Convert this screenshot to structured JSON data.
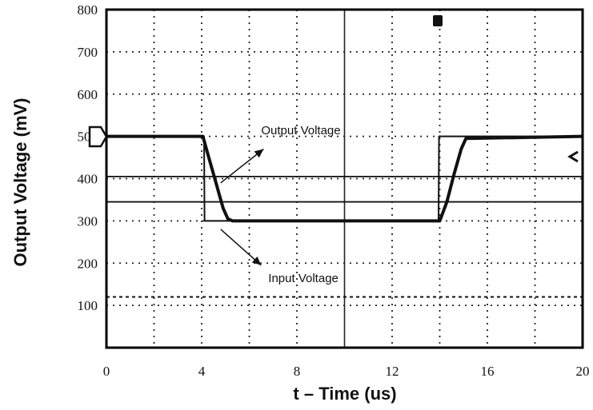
{
  "chart_data": {
    "type": "line",
    "title": "",
    "xlabel": "t – Time (us)",
    "ylabel": "Output Voltage (mV)",
    "xlim": [
      0,
      20
    ],
    "ylim": [
      0,
      800
    ],
    "x_ticks": [
      "0",
      "4",
      "8",
      "12",
      "16",
      "20"
    ],
    "y_ticks": [
      "100",
      "200",
      "300",
      "400",
      "500",
      "600",
      "700",
      "800"
    ],
    "grid": true,
    "series": [
      {
        "name": "Output Voltage",
        "color": "#111111",
        "x": [
          0,
          4.05,
          4.3,
          4.6,
          4.9,
          5.1,
          5.3,
          14.0,
          14.3,
          14.6,
          14.9,
          15.1,
          20
        ],
        "y": [
          500,
          500,
          450,
          390,
          330,
          305,
          300,
          300,
          345,
          410,
          470,
          495,
          500
        ]
      },
      {
        "name": "Input Voltage",
        "color": "#111111",
        "x": [
          0,
          4.1,
          4.12,
          13.95,
          13.97,
          20
        ],
        "y": [
          500,
          500,
          300,
          300,
          500,
          500
        ]
      }
    ],
    "reference_lines": [
      {
        "style": "solid",
        "y": 405
      },
      {
        "style": "solid",
        "y": 345
      },
      {
        "style": "dashed",
        "y": 120
      }
    ],
    "annotations": [
      {
        "text": "Output Voltage",
        "x": 6.5,
        "y": 505,
        "arrow_from": [
          4.8,
          390
        ],
        "arrow_to": [
          6.6,
          470
        ]
      },
      {
        "text": "Input Voltage",
        "x": 6.8,
        "y": 155,
        "arrow_from": [
          4.8,
          280
        ],
        "arrow_to": [
          6.5,
          195
        ]
      }
    ]
  }
}
